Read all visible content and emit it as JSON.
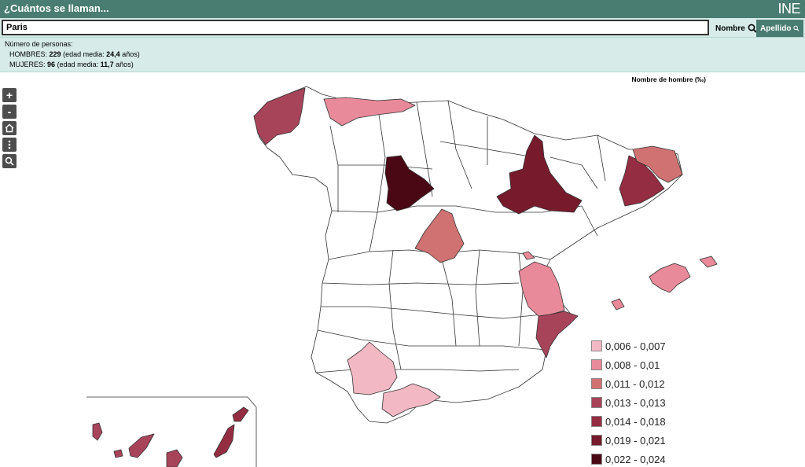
{
  "header": {
    "title": "¿Cuántos se llaman...",
    "logo_text": "INE"
  },
  "search": {
    "value": "Paris",
    "nombre_label": "Nombre",
    "apellido_label": "Apellido"
  },
  "stats": {
    "heading": "Número de personas:",
    "men_label": "HOMBRES:",
    "men_count": "229",
    "men_age_prefix": "(edad media:",
    "men_age": "24,4",
    "men_age_suffix": "años)",
    "women_label": "MUJERES:",
    "women_count": "96",
    "women_age_prefix": "(edad media:",
    "women_age": "11,7",
    "women_age_suffix": "años)"
  },
  "map": {
    "title": "Nombre de hombre (‰)",
    "zoom_in": "+",
    "zoom_out": "-",
    "legend": [
      {
        "label": "0,006 - 0,007",
        "color": "#f2b8c3"
      },
      {
        "label": "0,008 - 0,01",
        "color": "#e88a9a"
      },
      {
        "label": "0,011 - 0,012",
        "color": "#d07272"
      },
      {
        "label": "0,013 - 0,013",
        "color": "#a8445a"
      },
      {
        "label": "0,014 - 0,018",
        "color": "#952d42"
      },
      {
        "label": "0,019 - 0,021",
        "color": "#761a2c"
      },
      {
        "label": "0,022 - 0,024",
        "color": "#4a0815"
      }
    ]
  }
}
